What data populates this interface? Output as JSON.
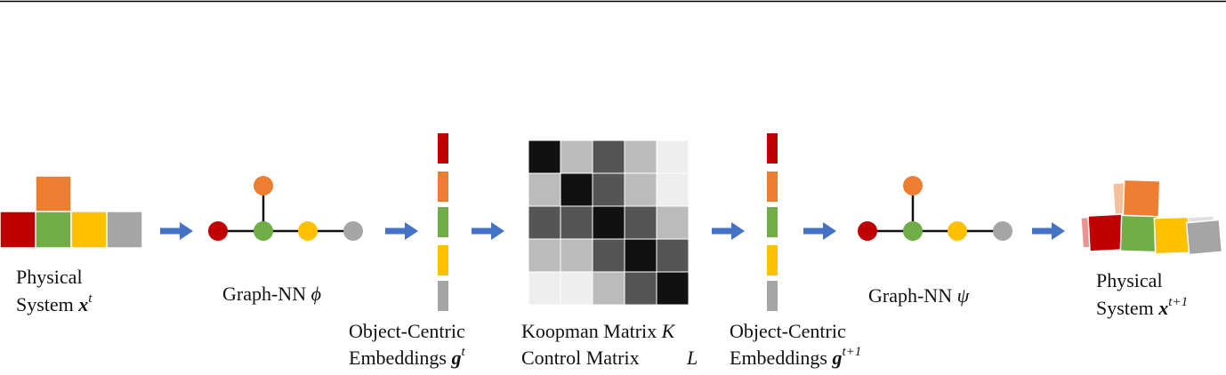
{
  "left_system": {
    "line1": "Physical",
    "line2": "System",
    "symbol": "x",
    "superscript": "t"
  },
  "encoder": {
    "label": "Graph-NN",
    "symbol": "ϕ"
  },
  "embeddings_t": {
    "line1": "Object-Centric",
    "line2": "Embeddings",
    "symbol": "g",
    "superscript": "t"
  },
  "koopman": {
    "line1": "Koopman Matrix",
    "symbol1": "K",
    "line2": "Control Matrix",
    "symbol2": "L"
  },
  "embeddings_t1": {
    "line1": "Object-Centric",
    "line2": "Embeddings",
    "symbol": "g",
    "superscript": "t+1"
  },
  "decoder": {
    "label": "Graph-NN",
    "symbol": "ψ"
  },
  "right_system": {
    "line1": "Physical",
    "line2": "System",
    "symbol": "x",
    "superscript": "t+1"
  }
}
